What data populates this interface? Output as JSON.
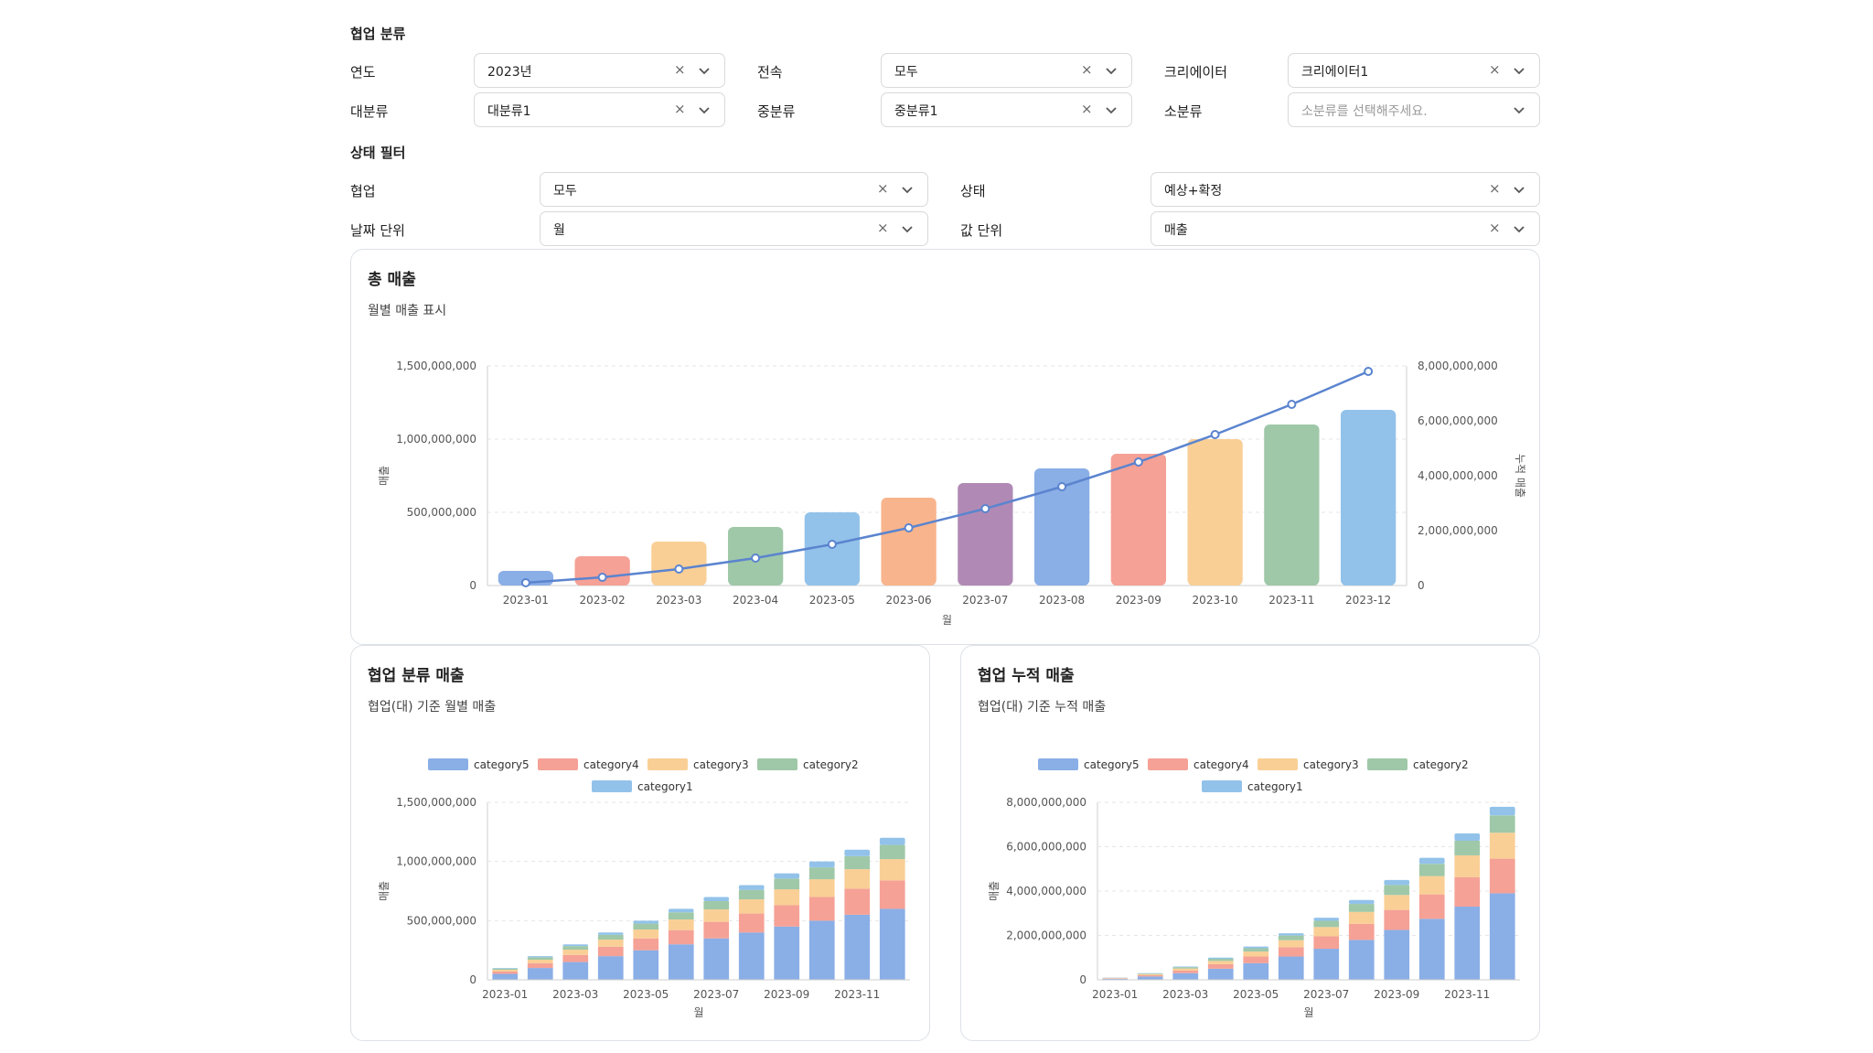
{
  "filters": {
    "section_title": "협업 분류",
    "year": {
      "label": "연도",
      "value": "2023년"
    },
    "exclusive": {
      "label": "전속",
      "value": "모두"
    },
    "creator": {
      "label": "크리에이터",
      "value": "크리에이터1"
    },
    "major": {
      "label": "대분류",
      "value": "대분류1"
    },
    "middle": {
      "label": "중분류",
      "value": "중분류1"
    },
    "minor": {
      "label": "소분류",
      "placeholder": "소분류를 선택해주세요."
    }
  },
  "status_filters": {
    "section_title": "상태 필터",
    "collab": {
      "label": "협업",
      "value": "모두"
    },
    "status": {
      "label": "상태",
      "value": "예상+확정"
    },
    "date_unit": {
      "label": "날짜 단위",
      "value": "월"
    },
    "value_unit": {
      "label": "값 단위",
      "value": "매출"
    }
  },
  "icons": {
    "clear": "clear-x-icon",
    "chevron": "chevron-down-icon"
  },
  "colors": {
    "category5": "#8aaee6",
    "category4": "#f5a196",
    "category3": "#f9cf96",
    "category2": "#9fc8a8",
    "category1": "#92c2ea",
    "line": "#5b84cf",
    "month_bars": [
      "#8aaee6",
      "#f5a196",
      "#f9cf96",
      "#9fc8a8",
      "#92c2ea",
      "#f8b48c",
      "#b08ab5",
      "#8aaee6",
      "#f5a196",
      "#f9cf96",
      "#9fc8a8",
      "#92c2ea"
    ]
  },
  "cards": {
    "total": {
      "title": "총 매출",
      "subtitle": "월별 매출 표시"
    },
    "category": {
      "title": "협업 분류 매출",
      "subtitle": "협업(대) 기준 월별 매출"
    },
    "cumulative": {
      "title": "협업 누적 매출",
      "subtitle": "협업(대) 기준 누적 매출"
    }
  },
  "chart_data": [
    {
      "type": "bar",
      "categories": [
        "2023-01",
        "2023-02",
        "2023-03",
        "2023-04",
        "2023-05",
        "2023-06",
        "2023-07",
        "2023-08",
        "2023-09",
        "2023-10",
        "2023-11",
        "2023-12"
      ],
      "series": [
        {
          "values": [
            100000000,
            200000000,
            300000000,
            400000000,
            500000000,
            600000000,
            700000000,
            800000000,
            900000000,
            1000000000,
            1100000000,
            1200000000
          ]
        },
        {
          "type": "line",
          "values": [
            100000000,
            300000000,
            600000000,
            1000000000,
            1500000000,
            2100000000,
            2800000000,
            3600000000,
            4500000000,
            5500000000,
            6600000000,
            7800000000
          ]
        }
      ],
      "xlabel": "월",
      "ylabel": "매출",
      "y2label": "누적 매출",
      "ylim": [
        0,
        1500000000
      ],
      "y2lim": [
        0,
        8000000000
      ],
      "yticks": [
        "0",
        "500,000,000",
        "1,000,000,000",
        "1,500,000,000"
      ],
      "y2ticks": [
        "0",
        "2,000,000,000",
        "4,000,000,000",
        "6,000,000,000",
        "8,000,000,000"
      ],
      "grid": true,
      "legend": "none"
    },
    {
      "type": "bar",
      "stacked": true,
      "categories": [
        "2023-01",
        "2023-02",
        "2023-03",
        "2023-04",
        "2023-05",
        "2023-06",
        "2023-07",
        "2023-08",
        "2023-09",
        "2023-10",
        "2023-11",
        "2023-12"
      ],
      "xticks": [
        "2023-01",
        "2023-03",
        "2023-05",
        "2023-07",
        "2023-09",
        "2023-11"
      ],
      "series": [
        {
          "name": "category5",
          "values": [
            50000000,
            100000000,
            150000000,
            200000000,
            250000000,
            300000000,
            350000000,
            400000000,
            450000000,
            500000000,
            550000000,
            600000000
          ]
        },
        {
          "name": "category4",
          "values": [
            20000000,
            40000000,
            60000000,
            80000000,
            100000000,
            120000000,
            140000000,
            160000000,
            180000000,
            200000000,
            220000000,
            240000000
          ]
        },
        {
          "name": "category3",
          "values": [
            15000000,
            30000000,
            45000000,
            60000000,
            75000000,
            90000000,
            105000000,
            120000000,
            135000000,
            150000000,
            165000000,
            180000000
          ]
        },
        {
          "name": "category2",
          "values": [
            10000000,
            20000000,
            30000000,
            40000000,
            50000000,
            60000000,
            70000000,
            80000000,
            90000000,
            100000000,
            110000000,
            120000000
          ]
        },
        {
          "name": "category1",
          "values": [
            5000000,
            10000000,
            15000000,
            20000000,
            25000000,
            30000000,
            35000000,
            40000000,
            45000000,
            50000000,
            55000000,
            60000000
          ]
        }
      ],
      "xlabel": "월",
      "ylabel": "매출",
      "ylim": [
        0,
        1500000000
      ],
      "yticks": [
        "0",
        "500,000,000",
        "1,000,000,000",
        "1,500,000,000"
      ],
      "grid": true,
      "legend": "top"
    },
    {
      "type": "bar",
      "stacked": true,
      "categories": [
        "2023-01",
        "2023-02",
        "2023-03",
        "2023-04",
        "2023-05",
        "2023-06",
        "2023-07",
        "2023-08",
        "2023-09",
        "2023-10",
        "2023-11",
        "2023-12"
      ],
      "xticks": [
        "2023-01",
        "2023-03",
        "2023-05",
        "2023-07",
        "2023-09",
        "2023-11"
      ],
      "series": [
        {
          "name": "category5",
          "values": [
            50000000,
            150000000,
            300000000,
            500000000,
            750000000,
            1050000000,
            1400000000,
            1800000000,
            2250000000,
            2750000000,
            3300000000,
            3900000000
          ]
        },
        {
          "name": "category4",
          "values": [
            20000000,
            60000000,
            120000000,
            200000000,
            300000000,
            420000000,
            560000000,
            720000000,
            900000000,
            1100000000,
            1320000000,
            1560000000
          ]
        },
        {
          "name": "category3",
          "values": [
            15000000,
            45000000,
            90000000,
            150000000,
            225000000,
            315000000,
            420000000,
            540000000,
            675000000,
            825000000,
            990000000,
            1170000000
          ]
        },
        {
          "name": "category2",
          "values": [
            10000000,
            30000000,
            60000000,
            100000000,
            150000000,
            210000000,
            280000000,
            360000000,
            450000000,
            550000000,
            660000000,
            780000000
          ]
        },
        {
          "name": "category1",
          "values": [
            5000000,
            15000000,
            30000000,
            50000000,
            75000000,
            105000000,
            140000000,
            180000000,
            225000000,
            275000000,
            330000000,
            390000000
          ]
        }
      ],
      "xlabel": "월",
      "ylabel": "매출",
      "ylim": [
        0,
        8000000000
      ],
      "yticks": [
        "0",
        "2,000,000,000",
        "4,000,000,000",
        "6,000,000,000",
        "8,000,000,000"
      ],
      "grid": true,
      "legend": "top"
    }
  ]
}
